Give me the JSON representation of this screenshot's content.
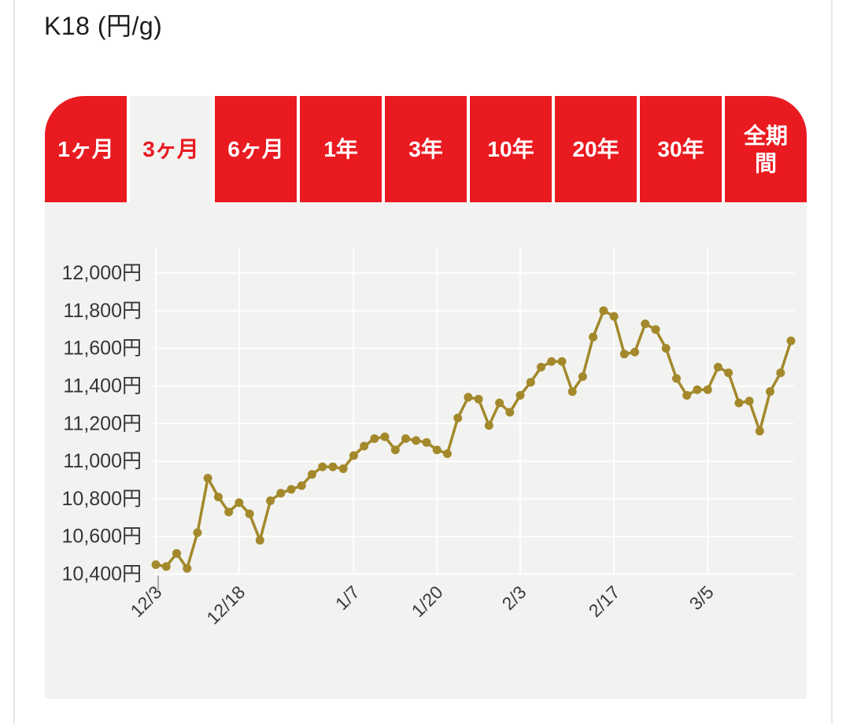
{
  "page": {
    "title": "K18 (円/g)"
  },
  "colors": {
    "tab_red": "#e91a20",
    "chart_background": "#f2f2f1",
    "line_gold": "#a3892b",
    "grid_white": "rgba(255,255,255,0.9)"
  },
  "tabs": {
    "items": [
      {
        "label": "1ヶ月",
        "selected": false
      },
      {
        "label": "3ヶ月",
        "selected": true
      },
      {
        "label": "6ヶ月",
        "selected": false
      },
      {
        "label": "1年",
        "selected": false
      },
      {
        "label": "3年",
        "selected": false
      },
      {
        "label": "10年",
        "selected": false
      },
      {
        "label": "20年",
        "selected": false
      },
      {
        "label": "30年",
        "selected": false
      },
      {
        "label": "全期間",
        "selected": false
      }
    ]
  },
  "chart_data": {
    "type": "line",
    "title": "K18 (円/g)",
    "unit": "円/g",
    "legend_position": "none",
    "grid": true,
    "ylim": [
      10400,
      12000
    ],
    "ytick_step": 200,
    "ytick_labels": [
      "12,000円",
      "11,800円",
      "11,600円",
      "11,400円",
      "11,200円",
      "11,000円",
      "10,800円",
      "10,600円",
      "10,400円"
    ],
    "xtick_labels": [
      "12/3",
      "12/18",
      "1/7",
      "1/20",
      "2/3",
      "2/17",
      "3/5"
    ],
    "xtick_point_indices": [
      0,
      8,
      19,
      27,
      35,
      44,
      53
    ],
    "values": [
      10450,
      10440,
      10510,
      10430,
      10620,
      10910,
      10810,
      10730,
      10780,
      10720,
      10580,
      10790,
      10830,
      10850,
      10870,
      10930,
      10970,
      10970,
      10960,
      11030,
      11080,
      11120,
      11130,
      11060,
      11120,
      11110,
      11100,
      11060,
      11040,
      11230,
      11340,
      11330,
      11190,
      11310,
      11260,
      11350,
      11420,
      11500,
      11530,
      11530,
      11370,
      11450,
      11660,
      11800,
      11770,
      11570,
      11580,
      11730,
      11700,
      11600,
      11440,
      11350,
      11380,
      11380,
      11500,
      11470,
      11310,
      11320,
      11160,
      11370,
      11470,
      11640
    ]
  }
}
